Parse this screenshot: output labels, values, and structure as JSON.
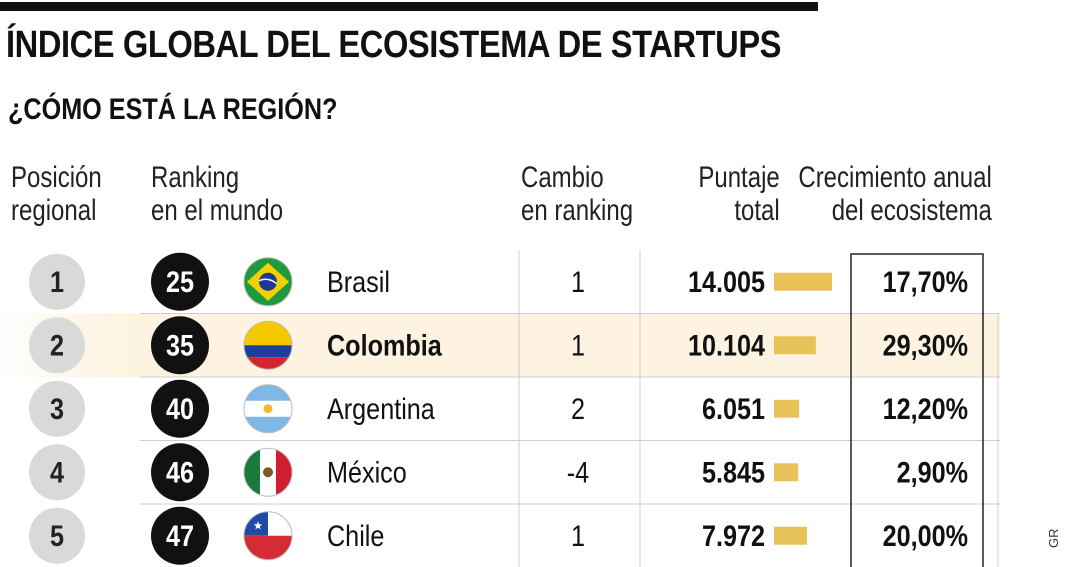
{
  "chart_data": {
    "type": "table",
    "title": "ÍNDICE GLOBAL DEL ECOSISTEMA DE STARTUPS",
    "subtitle": "¿CÓMO ESTÁ LA REGIÓN?",
    "columns": {
      "regional": [
        "Posición",
        "regional"
      ],
      "world": [
        "Ranking",
        "en el mundo"
      ],
      "change": [
        "Cambio",
        "en ranking"
      ],
      "score": [
        "Puntaje",
        "total"
      ],
      "growth": [
        "Crecimiento anual",
        "del ecosistema"
      ]
    },
    "rows": [
      {
        "regional": "1",
        "world": "25",
        "country": "Brasil",
        "flag": "brazil-flag",
        "change": "1",
        "score_label": "14.005",
        "score": 14005,
        "growth": "17,70%"
      },
      {
        "regional": "2",
        "world": "35",
        "country": "Colombia",
        "flag": "colombia-flag",
        "change": "1",
        "score_label": "10.104",
        "score": 10104,
        "growth": "29,30%"
      },
      {
        "regional": "3",
        "world": "40",
        "country": "Argentina",
        "flag": "argentina-flag",
        "change": "2",
        "score_label": "6.051",
        "score": 6051,
        "growth": "12,20%"
      },
      {
        "regional": "4",
        "world": "46",
        "country": "México",
        "flag": "mexico-flag",
        "change": "-4",
        "score_label": "5.845",
        "score": 5845,
        "growth": "2,90%"
      },
      {
        "regional": "5",
        "world": "47",
        "country": "Chile",
        "flag": "chile-flag",
        "change": "1",
        "score_label": "7.972",
        "score": 7972,
        "growth": "20,00%"
      }
    ],
    "highlight_row": 1,
    "score_bar_max": 14005,
    "colors": {
      "bar": "#e8c35a",
      "highlight": "#fdf3e0",
      "regional_circle": "#d9d9d9",
      "world_circle": "#111111"
    }
  },
  "credit": "GR"
}
